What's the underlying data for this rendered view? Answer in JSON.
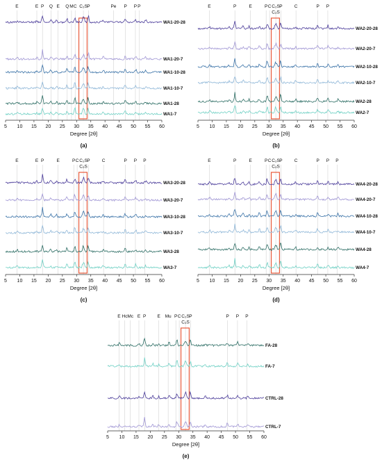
{
  "chart_data": [
    {
      "type": "line",
      "panel_label": "(a)",
      "xlabel": "Degree [2θ]",
      "xlim": [
        5,
        60
      ],
      "x_ticks": [
        5,
        10,
        15,
        20,
        25,
        30,
        35,
        40,
        45,
        50,
        55,
        60
      ],
      "phase_labels": [
        {
          "text": "E",
          "x": 9
        },
        {
          "text": "E",
          "x": 16
        },
        {
          "text": "P",
          "x": 18
        },
        {
          "text": "Q",
          "x": 21
        },
        {
          "text": "E",
          "x": 23.5
        },
        {
          "text": "Q",
          "x": 26.7
        },
        {
          "text": "M",
          "x": 28.2
        },
        {
          "text": "C",
          "x": 29.5
        },
        {
          "text": "C₂S",
          "x": 32.4
        },
        {
          "text": "P",
          "x": 34.2
        },
        {
          "text": "Pe",
          "x": 43
        },
        {
          "text": "P",
          "x": 47.2
        },
        {
          "text": "P",
          "x": 50.7
        },
        {
          "text": "P",
          "x": 52
        }
      ],
      "highlight_range": [
        30.8,
        33.7
      ],
      "series": [
        {
          "name": "WA1-20-28",
          "color": "#4b3c9a"
        },
        {
          "name": "WA1-20-7",
          "color": "#9f95d4"
        },
        {
          "name": "WA1-10-28",
          "color": "#3b73a8"
        },
        {
          "name": "WA1-10-7",
          "color": "#8fb7d8"
        },
        {
          "name": "WA1-28",
          "color": "#2f6f66"
        },
        {
          "name": "WA1-7",
          "color": "#6fd0c4"
        }
      ]
    },
    {
      "type": "line",
      "panel_label": "(b)",
      "xlabel": "Degree [2θ]",
      "xlim": [
        5,
        60
      ],
      "x_ticks": [
        5,
        10,
        15,
        20,
        25,
        30,
        35,
        40,
        45,
        50,
        55,
        60
      ],
      "phase_labels": [
        {
          "text": "E",
          "x": 9
        },
        {
          "text": "P",
          "x": 18
        },
        {
          "text": "E",
          "x": 23.5
        },
        {
          "text": "P",
          "x": 29
        },
        {
          "text": "C",
          "x": 30.2
        },
        {
          "text": "C₂S",
          "x": 32.4
        },
        {
          "text": "C₂S",
          "x": 32.4
        },
        {
          "text": "P",
          "x": 34.2
        },
        {
          "text": "C",
          "x": 39.5
        },
        {
          "text": "P",
          "x": 47.2
        },
        {
          "text": "P",
          "x": 50.7
        }
      ],
      "highlight_range": [
        30.8,
        33.7
      ],
      "series": [
        {
          "name": "WA2-20-28",
          "color": "#4b3c9a"
        },
        {
          "name": "WA2-20-7",
          "color": "#9f95d4"
        },
        {
          "name": "WA2-10-28",
          "color": "#3b73a8"
        },
        {
          "name": "WA2-10-7",
          "color": "#8fb7d8"
        },
        {
          "name": "WA2-28",
          "color": "#2f6f66"
        },
        {
          "name": "WA2-7",
          "color": "#6fd0c4"
        }
      ]
    },
    {
      "type": "line",
      "panel_label": "(c)",
      "xlabel": "Degree [2θ]",
      "xlim": [
        5,
        60
      ],
      "x_ticks": [
        5,
        10,
        15,
        20,
        25,
        30,
        35,
        40,
        45,
        50,
        55,
        60
      ],
      "phase_labels": [
        {
          "text": "E",
          "x": 9
        },
        {
          "text": "E",
          "x": 16
        },
        {
          "text": "P",
          "x": 18
        },
        {
          "text": "E",
          "x": 23.5
        },
        {
          "text": "P",
          "x": 29
        },
        {
          "text": "C",
          "x": 30.2
        },
        {
          "text": "C₂S",
          "x": 32.4
        },
        {
          "text": "C₂S",
          "x": 32.4
        },
        {
          "text": "P",
          "x": 34.2
        },
        {
          "text": "C",
          "x": 39.5
        },
        {
          "text": "P",
          "x": 47.2
        },
        {
          "text": "P",
          "x": 50.7
        },
        {
          "text": "P",
          "x": 54
        }
      ],
      "highlight_range": [
        30.8,
        33.7
      ],
      "series": [
        {
          "name": "WA3-20-28",
          "color": "#4b3c9a"
        },
        {
          "name": "WA3-20-7",
          "color": "#9f95d4"
        },
        {
          "name": "WA3-10-28",
          "color": "#3b73a8"
        },
        {
          "name": "WA3-10-7",
          "color": "#8fb7d8"
        },
        {
          "name": "WA3-28",
          "color": "#2f6f66"
        },
        {
          "name": "WA3-7",
          "color": "#6fd0c4"
        }
      ]
    },
    {
      "type": "line",
      "panel_label": "(d)",
      "xlabel": "Degree [2θ]",
      "xlim": [
        5,
        60
      ],
      "x_ticks": [
        5,
        10,
        15,
        20,
        25,
        30,
        35,
        40,
        45,
        50,
        55,
        60
      ],
      "phase_labels": [
        {
          "text": "E",
          "x": 9
        },
        {
          "text": "P",
          "x": 18
        },
        {
          "text": "E",
          "x": 23.5
        },
        {
          "text": "P",
          "x": 29
        },
        {
          "text": "C",
          "x": 30.2
        },
        {
          "text": "C₂S",
          "x": 32.4
        },
        {
          "text": "C₂S",
          "x": 32.4
        },
        {
          "text": "P",
          "x": 34.2
        },
        {
          "text": "C",
          "x": 39.5
        },
        {
          "text": "P",
          "x": 47.2
        },
        {
          "text": "P",
          "x": 50.7
        },
        {
          "text": "P",
          "x": 54
        }
      ],
      "highlight_range": [
        30.8,
        33.7
      ],
      "series": [
        {
          "name": "WA4-20-28",
          "color": "#4b3c9a"
        },
        {
          "name": "WA4-20-7",
          "color": "#9f95d4"
        },
        {
          "name": "WA4-10-28",
          "color": "#3b73a8"
        },
        {
          "name": "WA4-10-7",
          "color": "#8fb7d8"
        },
        {
          "name": "WA4-28",
          "color": "#2f6f66"
        },
        {
          "name": "WA4-7",
          "color": "#6fd0c4"
        }
      ]
    },
    {
      "type": "line",
      "panel_label": "(e)",
      "xlabel": "Degree [2θ]",
      "xlim": [
        5,
        60
      ],
      "x_ticks": [
        5,
        10,
        15,
        20,
        25,
        30,
        35,
        40,
        45,
        50,
        55,
        60
      ],
      "phase_labels": [
        {
          "text": "E",
          "x": 9
        },
        {
          "text": "Hc",
          "x": 11
        },
        {
          "text": "Mc",
          "x": 13
        },
        {
          "text": "E",
          "x": 16
        },
        {
          "text": "P",
          "x": 18
        },
        {
          "text": "E",
          "x": 23
        },
        {
          "text": "Mu",
          "x": 26.3
        },
        {
          "text": "P",
          "x": 29
        },
        {
          "text": "C",
          "x": 30.2
        },
        {
          "text": "C₂S",
          "x": 32.4
        },
        {
          "text": "C₂S",
          "x": 32.4
        },
        {
          "text": "P",
          "x": 34.2
        },
        {
          "text": "P",
          "x": 47.2
        },
        {
          "text": "P",
          "x": 50.7
        },
        {
          "text": "P",
          "x": 54
        }
      ],
      "highlight_range": [
        30.8,
        33.7
      ],
      "series": [
        {
          "name": "FA-28",
          "color": "#2f6f66"
        },
        {
          "name": "FA-7",
          "color": "#6fd0c4"
        },
        {
          "name": "CTRL-28",
          "color": "#4b3c9a"
        },
        {
          "name": "CTRL-7",
          "color": "#9f95d4"
        }
      ]
    }
  ]
}
